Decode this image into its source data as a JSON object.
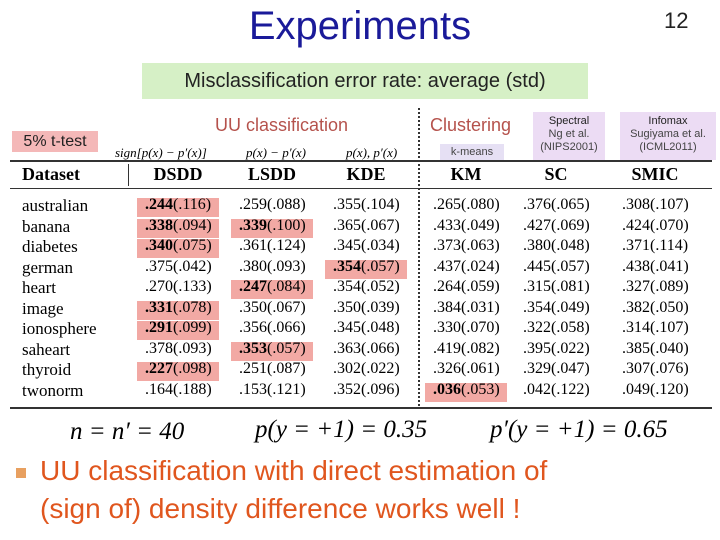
{
  "header": {
    "title": "Experiments",
    "page": "12",
    "subtitle": "Misclassification error rate: average (std)"
  },
  "ttest": "5% t-test",
  "groups": [
    "UU classification",
    "Clustering"
  ],
  "method_notes": [
    "sign[p(x) − p′(x)]",
    "p(x) − p′(x)",
    "p(x), p′(x)"
  ],
  "refs": {
    "kmeans": "k-means",
    "spectral": [
      "Spectral",
      "Ng et al.",
      "(NIPS2001)"
    ],
    "infomax": [
      "Infomax",
      "Sugiyama et al.",
      "(ICML2011)"
    ]
  },
  "table": {
    "columns": [
      "Dataset",
      "DSDD",
      "LSDD",
      "KDE",
      "KM",
      "SC",
      "SMIC"
    ],
    "highlight_color": "#f2a9a4",
    "rows": [
      {
        "name": "australian",
        "cells": [
          [
            ".244",
            "(.116)"
          ],
          [
            ".259",
            "(.088)"
          ],
          [
            ".355",
            "(.104)"
          ],
          [
            ".265",
            "(.080)"
          ],
          [
            ".376",
            "(.065)"
          ],
          [
            ".308",
            "(.107)"
          ]
        ],
        "highlight": [
          0
        ]
      },
      {
        "name": "banana",
        "cells": [
          [
            ".338",
            "(.094)"
          ],
          [
            ".339",
            "(.100)"
          ],
          [
            ".365",
            "(.067)"
          ],
          [
            ".433",
            "(.049)"
          ],
          [
            ".427",
            "(.069)"
          ],
          [
            ".424",
            "(.070)"
          ]
        ],
        "highlight": [
          0,
          1
        ]
      },
      {
        "name": "diabetes",
        "cells": [
          [
            ".340",
            "(.075)"
          ],
          [
            ".361",
            "(.124)"
          ],
          [
            ".345",
            "(.034)"
          ],
          [
            ".373",
            "(.063)"
          ],
          [
            ".380",
            "(.048)"
          ],
          [
            ".371",
            "(.114)"
          ]
        ],
        "highlight": [
          0
        ]
      },
      {
        "name": "german",
        "cells": [
          [
            ".375",
            "(.042)"
          ],
          [
            ".380",
            "(.093)"
          ],
          [
            ".354",
            "(.057)"
          ],
          [
            ".437",
            "(.024)"
          ],
          [
            ".445",
            "(.057)"
          ],
          [
            ".438",
            "(.041)"
          ]
        ],
        "highlight": [
          2
        ]
      },
      {
        "name": "heart",
        "cells": [
          [
            ".270",
            "(.133)"
          ],
          [
            ".247",
            "(.084)"
          ],
          [
            ".354",
            "(.052)"
          ],
          [
            ".264",
            "(.059)"
          ],
          [
            ".315",
            "(.081)"
          ],
          [
            ".327",
            "(.089)"
          ]
        ],
        "highlight": [
          1
        ]
      },
      {
        "name": "image",
        "cells": [
          [
            ".331",
            "(.078)"
          ],
          [
            ".350",
            "(.067)"
          ],
          [
            ".350",
            "(.039)"
          ],
          [
            ".384",
            "(.031)"
          ],
          [
            ".354",
            "(.049)"
          ],
          [
            ".382",
            "(.050)"
          ]
        ],
        "highlight": [
          0
        ]
      },
      {
        "name": "ionosphere",
        "cells": [
          [
            ".291",
            "(.099)"
          ],
          [
            ".356",
            "(.066)"
          ],
          [
            ".345",
            "(.048)"
          ],
          [
            ".330",
            "(.070)"
          ],
          [
            ".322",
            "(.058)"
          ],
          [
            ".314",
            "(.107)"
          ]
        ],
        "highlight": [
          0
        ]
      },
      {
        "name": "saheart",
        "cells": [
          [
            ".378",
            "(.093)"
          ],
          [
            ".353",
            "(.057)"
          ],
          [
            ".363",
            "(.066)"
          ],
          [
            ".419",
            "(.082)"
          ],
          [
            ".395",
            "(.022)"
          ],
          [
            ".385",
            "(.040)"
          ]
        ],
        "highlight": [
          1
        ]
      },
      {
        "name": "thyroid",
        "cells": [
          [
            ".227",
            "(.098)"
          ],
          [
            ".251",
            "(.087)"
          ],
          [
            ".302",
            "(.022)"
          ],
          [
            ".326",
            "(.061)"
          ],
          [
            ".329",
            "(.047)"
          ],
          [
            ".307",
            "(.076)"
          ]
        ],
        "highlight": [
          0
        ]
      },
      {
        "name": "twonorm",
        "cells": [
          [
            ".164",
            "(.188)"
          ],
          [
            ".153",
            "(.121)"
          ],
          [
            ".352",
            "(.096)"
          ],
          [
            ".036",
            "(.053)"
          ],
          [
            ".042",
            "(.122)"
          ],
          [
            ".049",
            "(.120)"
          ]
        ],
        "highlight": [
          3
        ]
      }
    ]
  },
  "formulas": [
    "n = n′ = 40",
    "p(y = +1) = 0.35",
    "p′(y = +1) = 0.65"
  ],
  "bullet": [
    "UU classification with direct estimation of",
    "(sign of) density difference works well !"
  ]
}
